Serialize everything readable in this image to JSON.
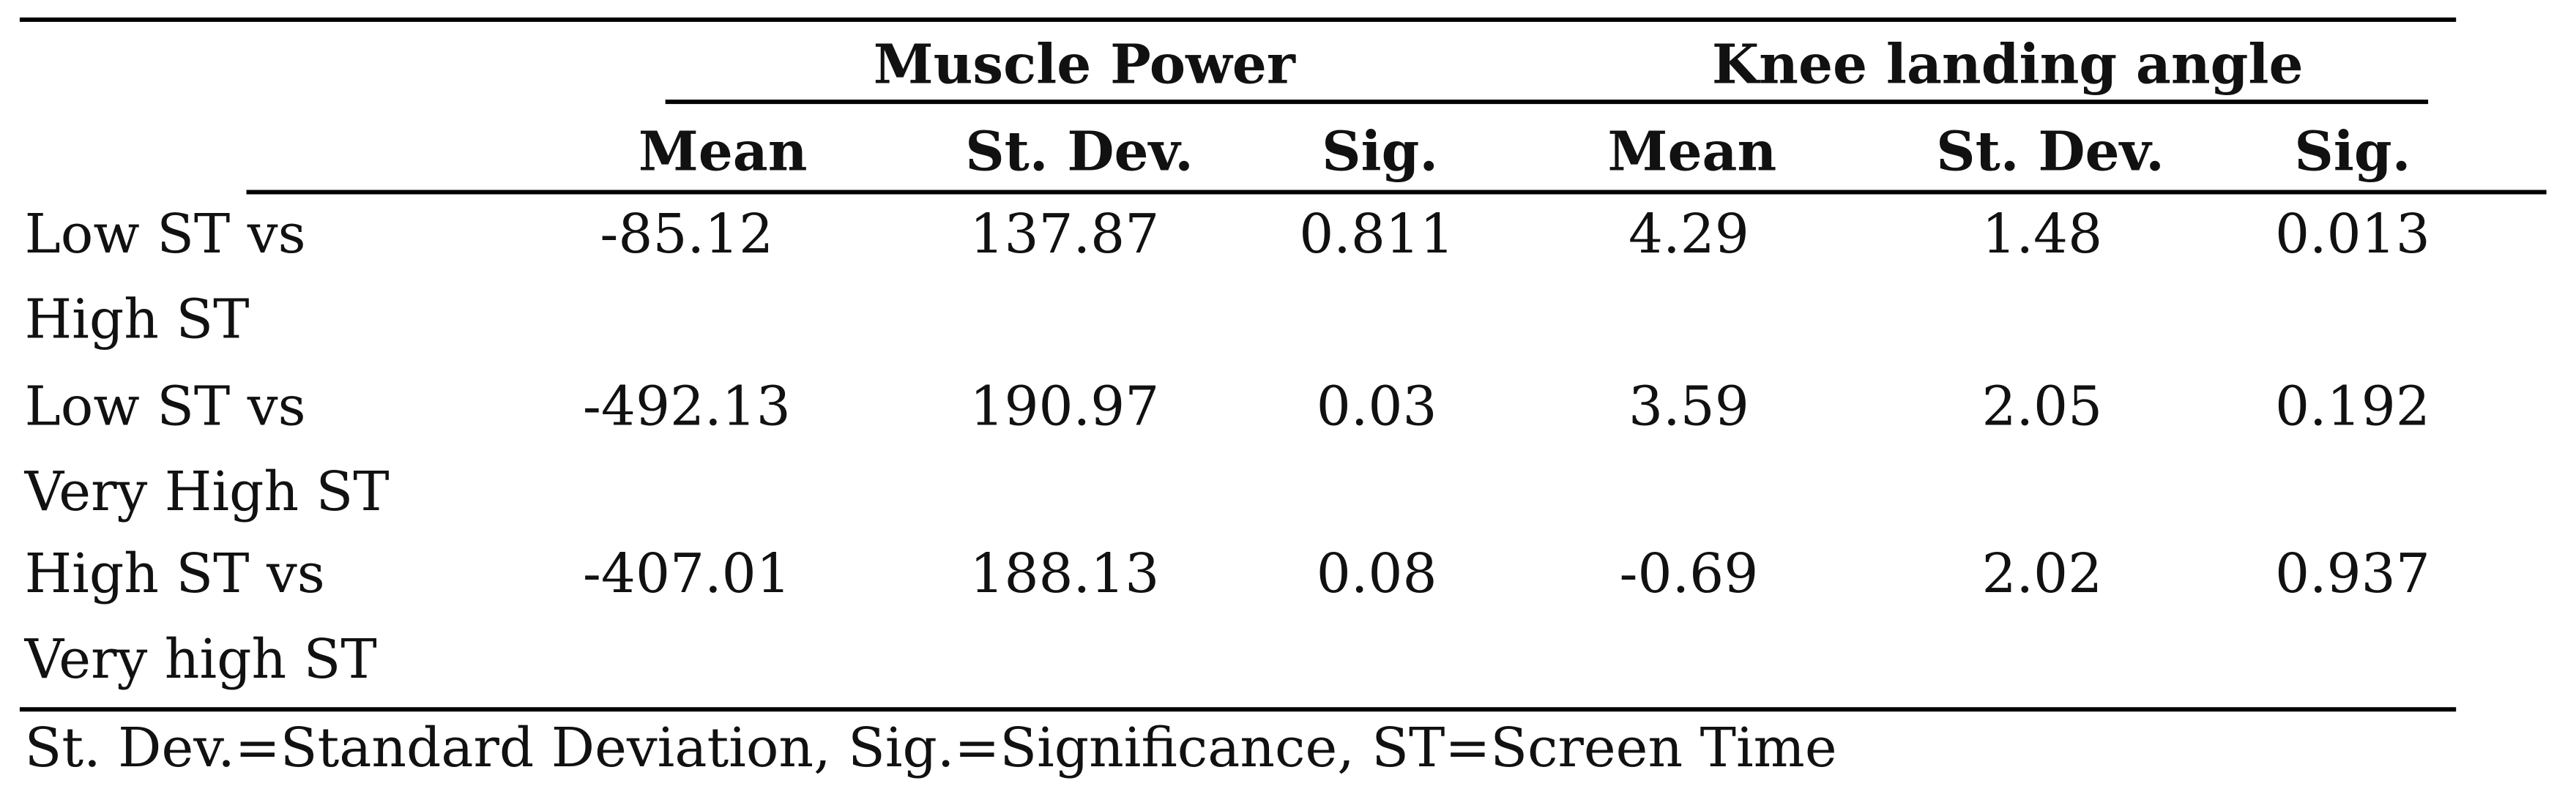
{
  "table": {
    "groups": [
      "Muscle Power",
      "Knee landing angle"
    ],
    "columns": [
      "Mean",
      "St. Dev.",
      "Sig.",
      "Mean",
      "St. Dev.",
      "Sig."
    ],
    "rows": [
      {
        "label": [
          "Low ST vs",
          "High ST"
        ],
        "cells": [
          -85.12,
          137.87,
          0.811,
          4.29,
          1.48,
          0.013
        ]
      },
      {
        "label": [
          "Low ST vs",
          "Very High ST"
        ],
        "cells": [
          -492.13,
          190.97,
          0.03,
          3.59,
          2.05,
          0.192
        ]
      },
      {
        "label": [
          "High ST vs",
          "Very high ST"
        ],
        "cells": [
          -407.01,
          188.13,
          0.08,
          -0.69,
          2.02,
          0.937
        ]
      }
    ],
    "footnote": "St. Dev.=Standard Deviation, Sig.=Significance, ST=Screen Time"
  }
}
